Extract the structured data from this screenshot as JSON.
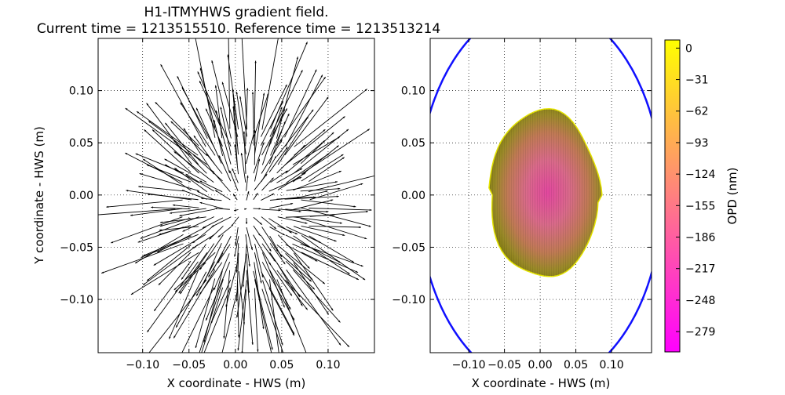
{
  "title_line1": "H1-ITMYHWS gradient field.",
  "title_line2": "Current time = 1213515510. Reference time = 1213513214",
  "chart_data": [
    {
      "type": "quiver",
      "name": "gradient field",
      "xlabel": "X coordinate - HWS (m)",
      "ylabel": "Y coordinate - HWS (m)",
      "xlim": [
        -0.148,
        0.15
      ],
      "ylim": [
        -0.151,
        0.15
      ],
      "xticks": [
        -0.1,
        -0.05,
        0.0,
        0.05,
        0.1
      ],
      "xtick_labels": [
        "−0.10",
        "−0.05",
        "0.00",
        "0.05",
        "0.10"
      ],
      "yticks": [
        0.1,
        0.05,
        0.0,
        -0.05,
        -0.1
      ],
      "ytick_labels": [
        "0.10",
        "0.05",
        "0.00",
        "−0.05",
        "−0.10"
      ],
      "grid": true,
      "field_model": {
        "pattern": "radial outward",
        "center": [
          0.01,
          -0.013
        ],
        "sample_region_radii": [
          0.075,
          0.085
        ],
        "grid_step": 0.0085,
        "gain": 0.95,
        "angle_jitter_rad": 0.25,
        "arrow_color": "#000000"
      }
    },
    {
      "type": "heatmap",
      "name": "OPD map",
      "xlabel": "X coordinate - HWS (m)",
      "xlim": [
        -0.154,
        0.156
      ],
      "ylim": [
        -0.151,
        0.15
      ],
      "xticks": [
        -0.1,
        -0.05,
        0.0,
        0.05,
        0.1
      ],
      "xtick_labels": [
        "−0.10",
        "−0.05",
        "0.00",
        "0.05",
        "0.10"
      ],
      "yticks": [
        0.1,
        0.05,
        0.0,
        -0.05,
        -0.1
      ],
      "ytick_labels": [
        "0.10",
        "0.05",
        "0.00",
        "−0.05",
        "−0.10"
      ],
      "grid": true,
      "surface_extent": {
        "x": [
          -0.074,
          0.085
        ],
        "y": [
          -0.08,
          0.08
        ]
      },
      "surface_center_opd_nm": -200,
      "surface_edge_opd_nm": -10,
      "aperture_ellipse": {
        "center": [
          0.0,
          0.0
        ],
        "radii": [
          0.171,
          0.183
        ],
        "color": "#1010ff"
      },
      "colorbar": {
        "label": "OPD (nm)",
        "colormap": "spring",
        "range": [
          -299,
          8
        ],
        "ticks": [
          0,
          -31,
          -62,
          -93,
          -124,
          -155,
          -186,
          -217,
          -248,
          -279
        ],
        "tick_labels": [
          "0",
          "−31",
          "−62",
          "−93",
          "−124",
          "−155",
          "−186",
          "−217",
          "−248",
          "−279"
        ],
        "color_low": "#ff00ff",
        "color_high": "#ffff00"
      }
    }
  ]
}
